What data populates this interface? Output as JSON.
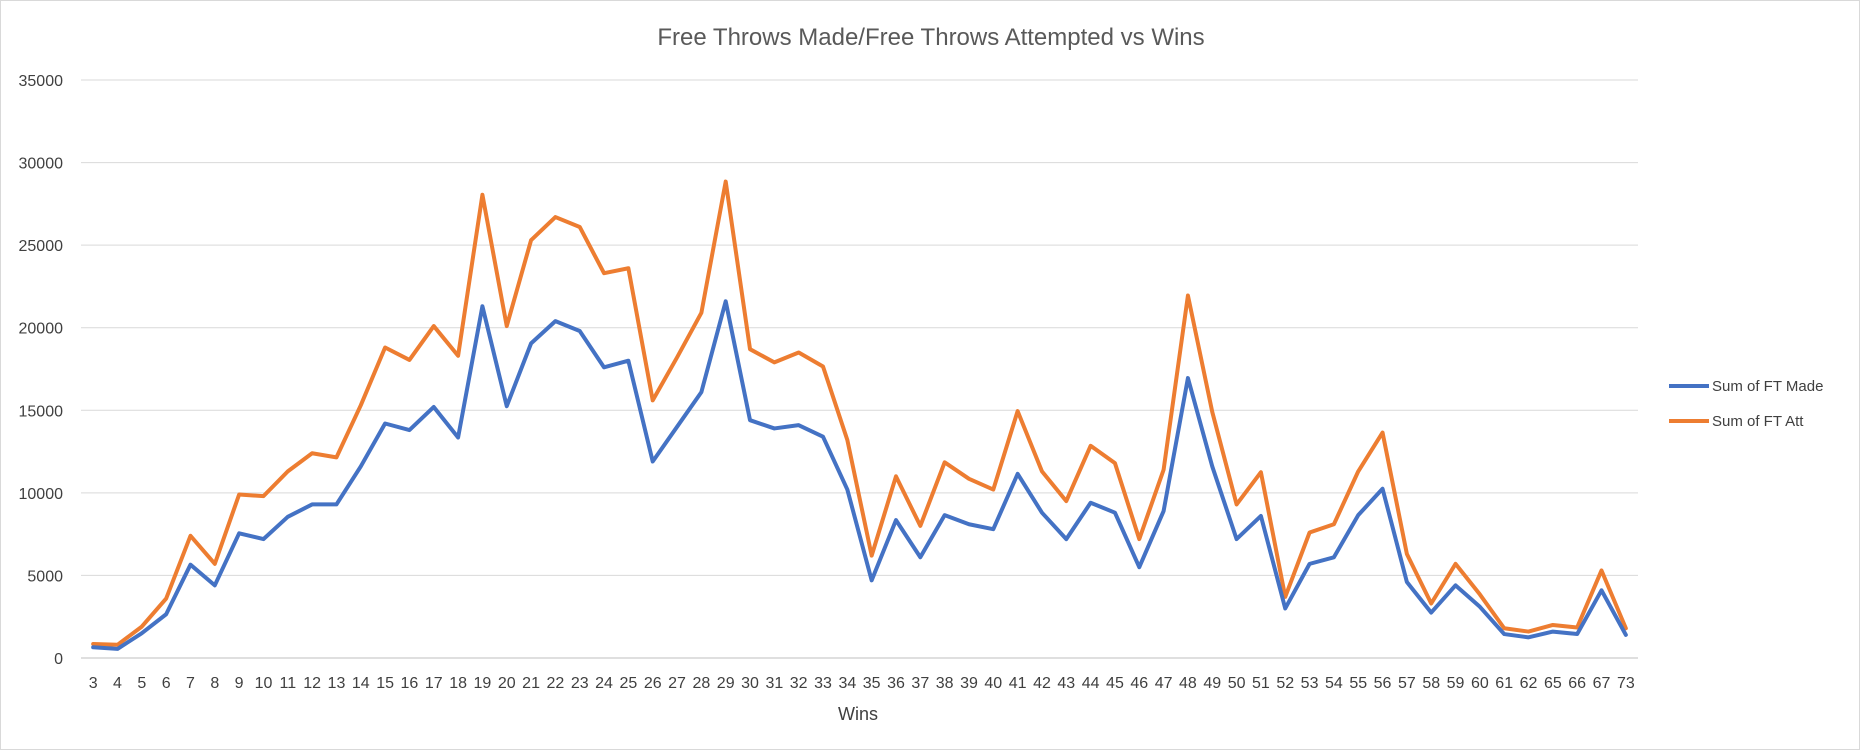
{
  "chart_data": {
    "type": "line",
    "title": "Free Throws Made/Free Throws Attempted vs Wins",
    "xlabel": "Wins",
    "ylabel": "",
    "ylim": [
      0,
      35000
    ],
    "yticks": [
      0,
      5000,
      10000,
      15000,
      20000,
      25000,
      30000,
      35000
    ],
    "grid": true,
    "legend_position": "right",
    "categories": [
      "3",
      "4",
      "5",
      "6",
      "7",
      "8",
      "9",
      "10",
      "11",
      "12",
      "13",
      "14",
      "15",
      "16",
      "17",
      "18",
      "19",
      "20",
      "21",
      "22",
      "23",
      "24",
      "25",
      "26",
      "27",
      "28",
      "29",
      "30",
      "31",
      "32",
      "33",
      "34",
      "35",
      "36",
      "37",
      "38",
      "39",
      "40",
      "41",
      "42",
      "43",
      "44",
      "45",
      "46",
      "47",
      "48",
      "49",
      "50",
      "51",
      "52",
      "53",
      "54",
      "55",
      "56",
      "57",
      "58",
      "59",
      "60",
      "61",
      "62",
      "65",
      "66",
      "67",
      "73"
    ],
    "series": [
      {
        "name": "Sum of FT Made",
        "color": "#4472c4",
        "values": [
          650,
          550,
          1500,
          2650,
          5650,
          4400,
          7550,
          7200,
          8550,
          9300,
          9300,
          11600,
          14200,
          13800,
          15200,
          13350,
          21300,
          15250,
          19050,
          20400,
          19800,
          17600,
          18000,
          11900,
          14000,
          16100,
          21600,
          14400,
          13900,
          14100,
          13400,
          10200,
          4700,
          8350,
          6100,
          8650,
          8100,
          7800,
          11150,
          8800,
          7200,
          9400,
          8800,
          5500,
          8900,
          16950,
          11600,
          7200,
          8600,
          3000,
          5700,
          6100,
          8650,
          10250,
          4600,
          2750,
          4400,
          3100,
          1450,
          1250,
          1600,
          1450,
          4100,
          1400
        ]
      },
      {
        "name": "Sum of FT Att",
        "color": "#ed7d31",
        "values": [
          850,
          800,
          1900,
          3600,
          7400,
          5700,
          9900,
          9800,
          11300,
          12400,
          12150,
          15300,
          18800,
          18050,
          20100,
          18300,
          28050,
          20100,
          25300,
          26700,
          26100,
          23300,
          23600,
          15600,
          18200,
          20900,
          28850,
          18700,
          17900,
          18500,
          17650,
          13200,
          6200,
          11000,
          8000,
          11850,
          10850,
          10200,
          14950,
          11300,
          9500,
          12850,
          11800,
          7200,
          11400,
          21950,
          14900,
          9300,
          11250,
          3700,
          7600,
          8100,
          11300,
          13650,
          6300,
          3300,
          5700,
          3850,
          1800,
          1600,
          2000,
          1850,
          5300,
          1800
        ]
      }
    ]
  }
}
